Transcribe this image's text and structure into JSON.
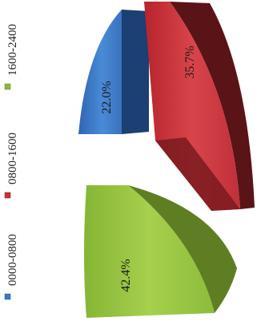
{
  "chart_data": {
    "type": "pie",
    "exploded": true,
    "three_d": true,
    "legend_position": "left",
    "categories": [
      "0000-0800",
      "0800-1600",
      "1600-2400"
    ],
    "values": [
      22.0,
      35.7,
      42.4
    ],
    "data_labels": [
      "22.0%",
      "35.7%",
      "42.4%"
    ],
    "colors": {
      "0000-0800": "#3a78c8",
      "0800-1600": "#c8313a",
      "1600-2400": "#8cb83a"
    }
  }
}
